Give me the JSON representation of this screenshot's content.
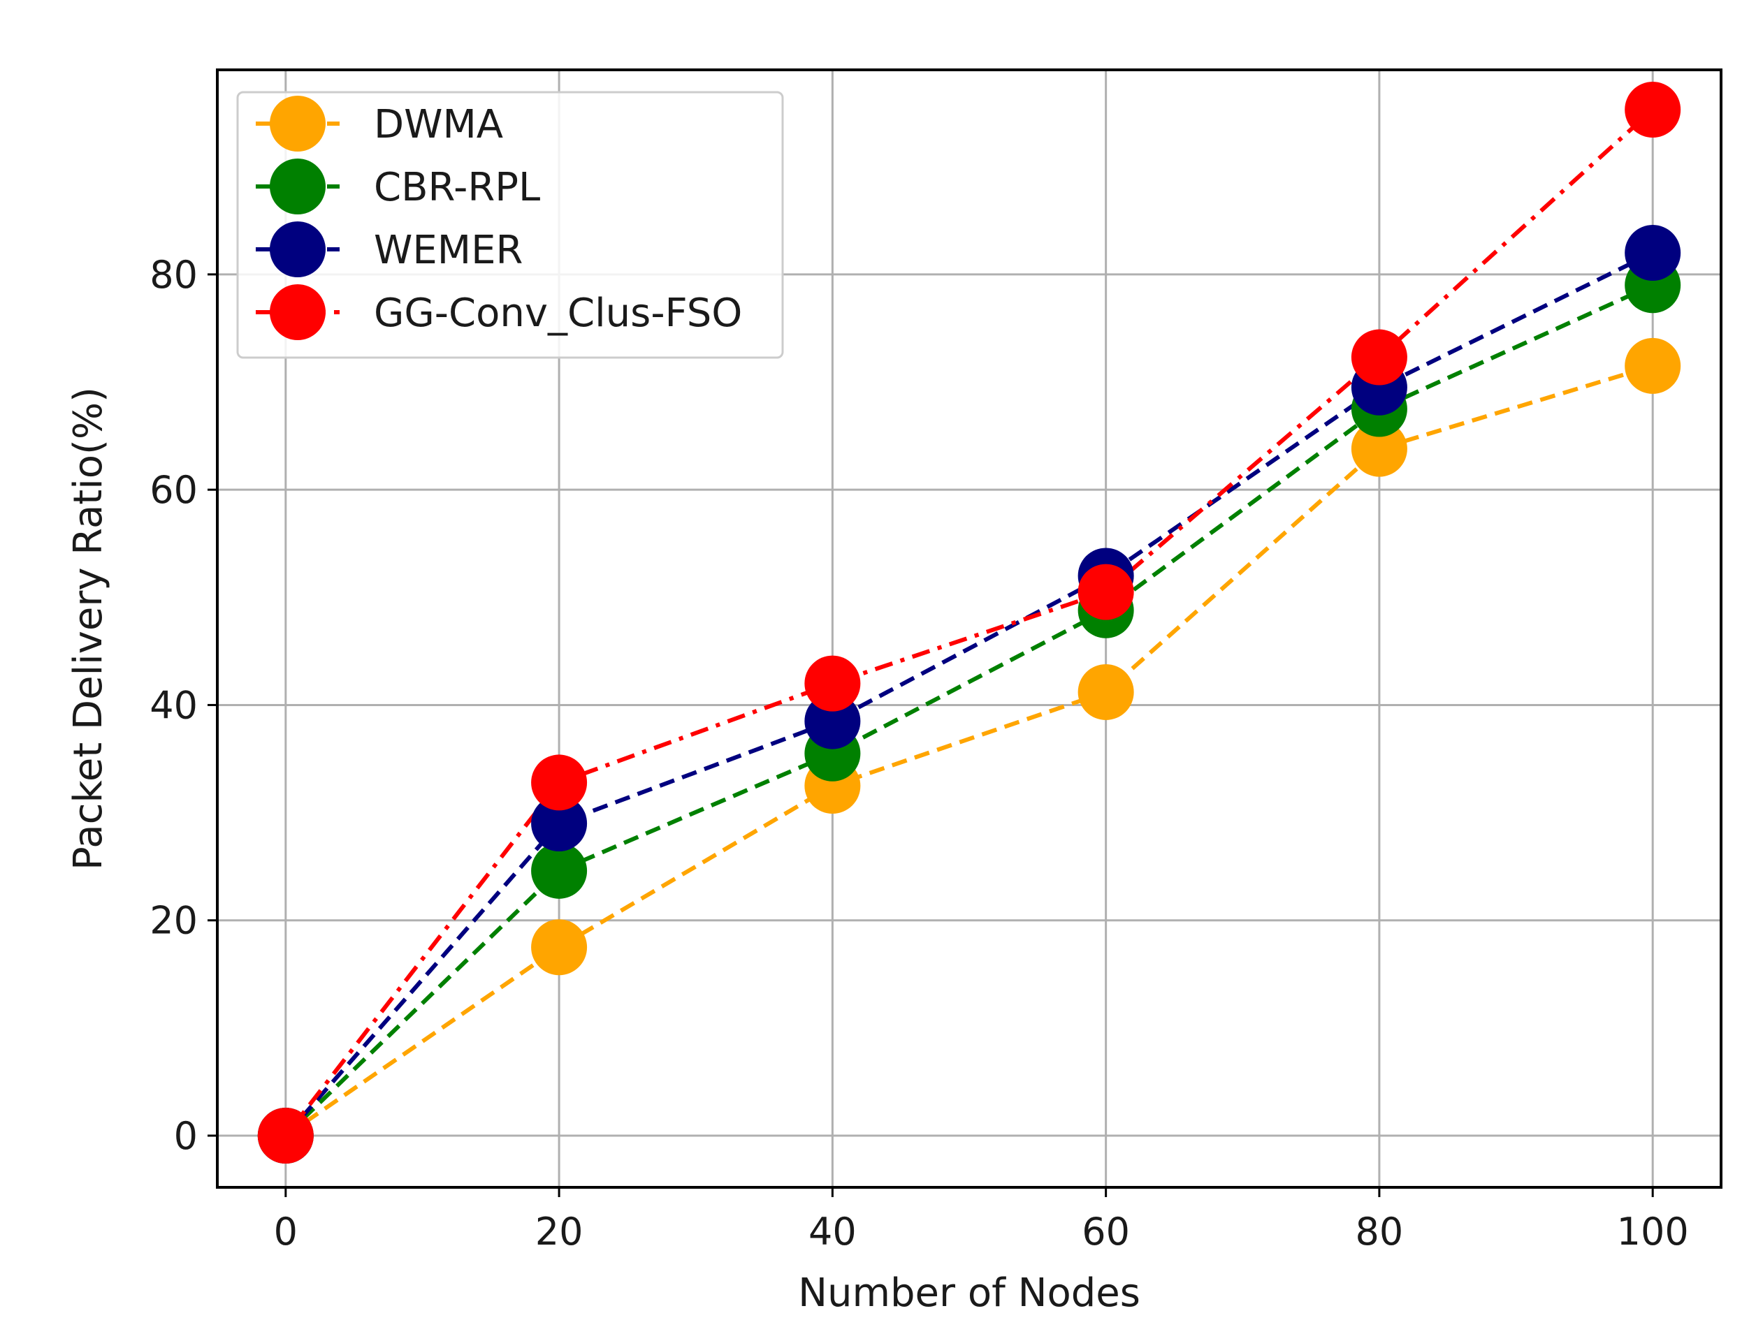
{
  "chart_data": {
    "type": "line",
    "title": "",
    "xlabel": "Number of Nodes",
    "ylabel": "Packet Delivery Ratio(%)",
    "x": [
      0,
      20,
      40,
      60,
      80,
      100
    ],
    "xlim": [
      -5,
      105
    ],
    "ylim": [
      -4.8,
      99
    ],
    "xticks": [
      0,
      20,
      40,
      60,
      80,
      100
    ],
    "yticks": [
      0,
      20,
      40,
      60,
      80
    ],
    "grid": true,
    "legend_position": "top-left",
    "series": [
      {
        "name": "DWMA",
        "color": "#FFA500",
        "linestyle": "dashed",
        "values": [
          0,
          17.5,
          32.5,
          41.2,
          63.8,
          71.5
        ]
      },
      {
        "name": "CBR-RPL",
        "color": "#008000",
        "linestyle": "dashed",
        "values": [
          0,
          24.6,
          35.5,
          48.8,
          67.5,
          79.0
        ]
      },
      {
        "name": "WEMER",
        "color": "#00007F",
        "linestyle": "dashed",
        "values": [
          0,
          29.0,
          38.5,
          52.0,
          69.5,
          82.0
        ]
      },
      {
        "name": "GG-Conv_Clus-FSO",
        "color": "#FF0000",
        "linestyle": "dashdot",
        "values": [
          0,
          32.8,
          42.0,
          50.5,
          72.3,
          95.3
        ]
      }
    ]
  }
}
